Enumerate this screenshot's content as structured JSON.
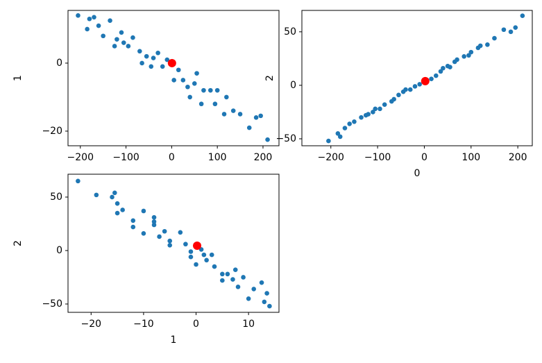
{
  "chart_data": [
    {
      "type": "scatter",
      "ylabel": "1",
      "xlim": [
        -227,
        235
      ],
      "ylim": [
        -24.3,
        15.5
      ],
      "xticks": [
        {
          "value": -200,
          "label": "−200"
        },
        {
          "value": -100,
          "label": "−100"
        },
        0,
        100,
        200
      ],
      "yticks": [
        {
          "value": -20,
          "label": "−20"
        },
        0
      ],
      "series": [
        {
          "color": "#1f77b4",
          "x": [
            -205,
            -185,
            -180,
            -170,
            -160,
            -150,
            -135,
            -125,
            -120,
            -110,
            -105,
            -95,
            -85,
            -70,
            -65,
            -55,
            -45,
            -40,
            -30,
            -20,
            -10,
            5,
            15,
            25,
            35,
            40,
            50,
            55,
            65,
            70,
            85,
            95,
            100,
            115,
            120,
            135,
            150,
            170,
            185,
            195,
            210
          ],
          "values": [
            14,
            10,
            13,
            13.5,
            11,
            8,
            12.5,
            5,
            7,
            9,
            6,
            5,
            7.5,
            3.5,
            0,
            2,
            -1,
            1.5,
            3,
            -1,
            1,
            -5,
            -2,
            -5,
            -7,
            -10,
            -6,
            -3,
            -12,
            -8,
            -8,
            -12,
            -8,
            -15,
            -10,
            -14,
            -15,
            -19,
            -16,
            -15.5,
            -22.5
          ]
        },
        {
          "color": "#ff0000",
          "x": [
            0.7
          ],
          "values": [
            0
          ]
        }
      ]
    },
    {
      "type": "scatter",
      "xlabel": "0",
      "ylabel": "2",
      "xlim": [
        -262,
        231
      ],
      "ylim": [
        -56.5,
        70
      ],
      "xticks": [
        {
          "value": -200,
          "label": "−200"
        },
        {
          "value": -100,
          "label": "−100"
        },
        0,
        100,
        200
      ],
      "yticks": [
        {
          "value": -50,
          "label": "−50"
        },
        0,
        50
      ],
      "series": [
        {
          "color": "#1f77b4",
          "x": [
            -205,
            -185,
            -180,
            -170,
            -160,
            -150,
            -135,
            -125,
            -120,
            -110,
            -105,
            -95,
            -85,
            -70,
            -65,
            -55,
            -45,
            -40,
            -30,
            -20,
            -10,
            5,
            15,
            25,
            35,
            40,
            50,
            55,
            65,
            70,
            85,
            95,
            100,
            115,
            120,
            135,
            150,
            170,
            185,
            195,
            210
          ],
          "values": [
            -52,
            -45,
            -48,
            -40,
            -36,
            -34,
            -30,
            -28,
            -27,
            -25,
            -22,
            -22,
            -18,
            -15,
            -13,
            -9,
            -6,
            -4,
            -4,
            -1,
            1,
            5,
            6,
            9,
            13,
            16,
            18,
            17,
            22,
            24,
            27,
            28,
            31,
            35,
            37,
            38,
            44,
            52,
            50,
            54,
            65
          ]
        },
        {
          "color": "#ff0000",
          "x": [
            2
          ],
          "values": [
            3.9
          ]
        }
      ]
    },
    {
      "type": "scatter",
      "xlabel": "1",
      "ylabel": "2",
      "xlim": [
        -24.4,
        15.8
      ],
      "ylim": [
        -57.8,
        71.4
      ],
      "xticks": [
        {
          "value": -20,
          "label": "−20"
        },
        {
          "value": -10,
          "label": "−10"
        },
        0,
        10
      ],
      "yticks": [
        {
          "value": -50,
          "label": "−50"
        },
        0,
        50
      ],
      "series": [
        {
          "color": "#1f77b4",
          "x": [
            14,
            10,
            13,
            13.5,
            11,
            8,
            12.5,
            5,
            7,
            9,
            6,
            5,
            7.5,
            3.5,
            0,
            2,
            -1,
            1.5,
            3,
            -1,
            1,
            -5,
            -2,
            -5,
            -7,
            -10,
            -6,
            -3,
            -12,
            -8,
            -8,
            -12,
            -8,
            -15,
            -10,
            -14,
            -15,
            -19,
            -16,
            -15.5,
            -22.5
          ],
          "values": [
            -52,
            -45,
            -48,
            -40,
            -36,
            -34,
            -30,
            -28,
            -27,
            -25,
            -22,
            -22,
            -18,
            -15,
            -13,
            -9,
            -6,
            -4,
            -4,
            -1,
            1,
            5,
            6,
            9,
            13,
            16,
            18,
            17,
            22,
            24,
            27,
            28,
            31,
            35,
            37,
            38,
            44,
            52,
            50,
            54,
            65
          ]
        },
        {
          "color": "#ff0000",
          "x": [
            0.2
          ],
          "values": [
            4.5
          ]
        }
      ]
    }
  ]
}
